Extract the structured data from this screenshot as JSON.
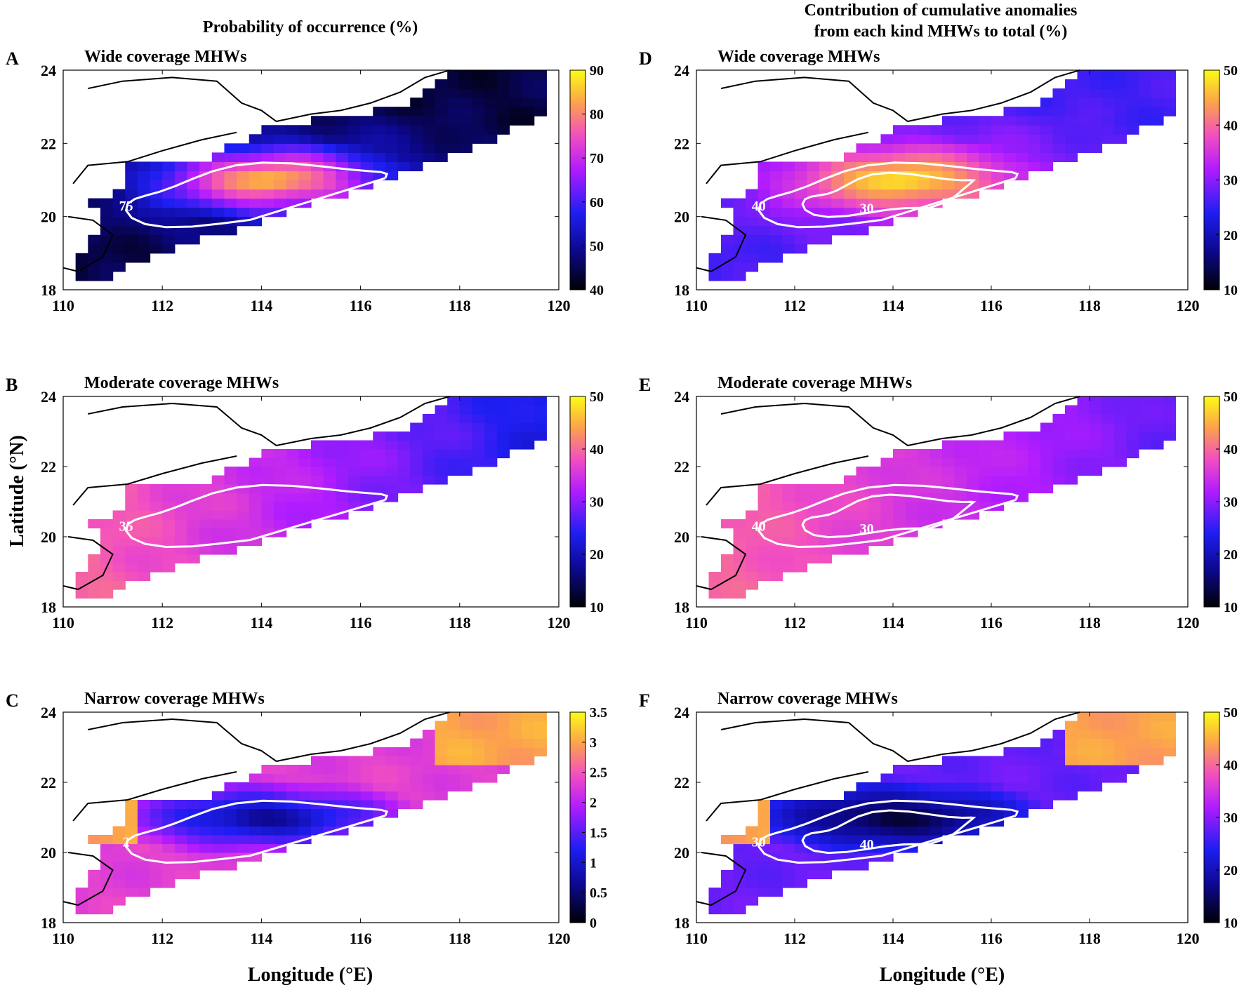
{
  "column_titles": {
    "left": "Probability of occurrence (%)",
    "right_line1": "Contribution of cumulative anomalies",
    "right_line2": "from each kind MHWs to total (%)"
  },
  "axis_labels": {
    "x": "Longitude (°E)",
    "y": "Latitude (°N)"
  },
  "chart_data": [
    {
      "id": "A",
      "label": "A",
      "type": "heatmap",
      "title": "Wide coverage MHWs",
      "xlim": [
        110,
        120
      ],
      "ylim": [
        18,
        24
      ],
      "xticks": [
        110,
        112,
        114,
        116,
        118,
        120
      ],
      "yticks": [
        18,
        20,
        22,
        24
      ],
      "colorbar": {
        "min": 40,
        "max": 90,
        "ticks": [
          40,
          50,
          60,
          70,
          80,
          90
        ]
      },
      "field": {
        "mode": "bowl",
        "center_value": 88,
        "edge_value": 50,
        "far_value": 44
      },
      "contours": [
        {
          "level": 75,
          "label": "75"
        }
      ]
    },
    {
      "id": "B",
      "label": "B",
      "type": "heatmap",
      "title": "Moderate coverage MHWs",
      "xlim": [
        110,
        120
      ],
      "ylim": [
        18,
        24
      ],
      "xticks": [
        110,
        112,
        114,
        116,
        118,
        120
      ],
      "yticks": [
        18,
        20,
        22,
        24
      ],
      "colorbar": {
        "min": 10,
        "max": 50,
        "ticks": [
          10,
          20,
          30,
          40,
          50
        ]
      },
      "field": {
        "mode": "westhigh",
        "west_value": 40,
        "east_value": 22
      },
      "contours": [
        {
          "level": 35,
          "label": "35"
        }
      ]
    },
    {
      "id": "C",
      "label": "C",
      "type": "heatmap",
      "title": "Narrow coverage MHWs",
      "xlim": [
        110,
        120
      ],
      "ylim": [
        18,
        24
      ],
      "xticks": [
        110,
        112,
        114,
        116,
        118,
        120
      ],
      "yticks": [
        18,
        20,
        22,
        24
      ],
      "colorbar": {
        "min": 0,
        "max": 3.5,
        "ticks": [
          0,
          0.5,
          1,
          1.5,
          2,
          2.5,
          3,
          3.5
        ],
        "tick_labels": [
          "0",
          "0.5",
          "1",
          "1.5",
          "2",
          "2.5",
          "3",
          "3.5"
        ]
      },
      "field": {
        "mode": "dip",
        "center_value": 0.5,
        "edge_value": 2.3,
        "corner_value": 3.0
      },
      "contours": [
        {
          "level": 2,
          "label": "2"
        }
      ]
    },
    {
      "id": "D",
      "label": "D",
      "type": "heatmap",
      "title": "Wide coverage MHWs",
      "xlim": [
        110,
        120
      ],
      "ylim": [
        18,
        24
      ],
      "xticks": [
        110,
        112,
        114,
        116,
        118,
        120
      ],
      "yticks": [
        18,
        20,
        22,
        24
      ],
      "colorbar": {
        "min": 10,
        "max": 50,
        "ticks": [
          10,
          20,
          30,
          40,
          50
        ]
      },
      "field": {
        "mode": "bowl",
        "center_value": 50,
        "edge_value": 30,
        "far_value": 26
      },
      "contours": [
        {
          "level": 40,
          "label": "40"
        },
        {
          "level": 30,
          "label": "30"
        }
      ]
    },
    {
      "id": "E",
      "label": "E",
      "type": "heatmap",
      "title": "Moderate coverage MHWs",
      "xlim": [
        110,
        120
      ],
      "ylim": [
        18,
        24
      ],
      "xticks": [
        110,
        112,
        114,
        116,
        118,
        120
      ],
      "yticks": [
        18,
        20,
        22,
        24
      ],
      "colorbar": {
        "min": 10,
        "max": 50,
        "ticks": [
          10,
          20,
          30,
          40,
          50
        ]
      },
      "field": {
        "mode": "westhigh",
        "west_value": 40,
        "east_value": 27
      },
      "contours": [
        {
          "level": 40,
          "label": "40"
        },
        {
          "level": 30,
          "label": "30"
        }
      ]
    },
    {
      "id": "F",
      "label": "F",
      "type": "heatmap",
      "title": "Narrow coverage MHWs",
      "xlim": [
        110,
        120
      ],
      "ylim": [
        18,
        24
      ],
      "xticks": [
        110,
        112,
        114,
        116,
        118,
        120
      ],
      "yticks": [
        18,
        20,
        22,
        24
      ],
      "colorbar": {
        "min": 10,
        "max": 50,
        "ticks": [
          10,
          20,
          30,
          40,
          50
        ]
      },
      "field": {
        "mode": "dip",
        "center_value": 11,
        "edge_value": 28,
        "corner_value": 44
      },
      "contours": [
        {
          "level": 30,
          "label": "30"
        },
        {
          "level": 40,
          "label": "40"
        }
      ]
    }
  ]
}
